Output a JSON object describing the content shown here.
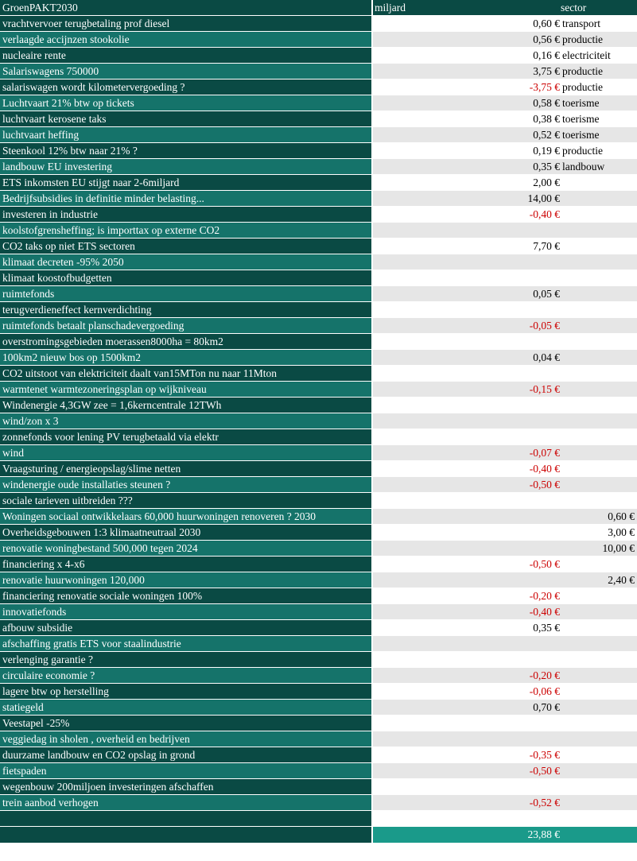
{
  "header": {
    "title": "GroenPAKT2030",
    "col_value": "miljard",
    "col_sector": "sector"
  },
  "rows": [
    {
      "label": "vrachtvervoer terugbetaling prof diesel",
      "value": "0,60 €",
      "sector": "transport",
      "neg": false
    },
    {
      "label": "verlaagde accijnzen stookolie",
      "value": "0,56 €",
      "sector": "productie",
      "neg": false
    },
    {
      "label": "nucleaire rente",
      "value": "0,16 €",
      "sector": "electriciteit",
      "neg": false
    },
    {
      "label": "Salariswagens 750000",
      "value": "3,75 €",
      "sector": "productie",
      "neg": false
    },
    {
      "label": "salariswagen wordt kilometervergoeding ?",
      "value": "-3,75 €",
      "sector": "productie",
      "neg": true
    },
    {
      "label": "Luchtvaart 21% btw op tickets",
      "value": "0,58 €",
      "sector": "toerisme",
      "neg": false
    },
    {
      "label": "luchtvaart kerosene taks",
      "value": "0,38 €",
      "sector": "toerisme",
      "neg": false
    },
    {
      "label": "luchtvaart heffing",
      "value": "0,52 €",
      "sector": "toerisme",
      "neg": false
    },
    {
      "label": "Steenkool 12% btw naar 21% ?",
      "value": "0,19 €",
      "sector": "productie",
      "neg": false
    },
    {
      "label": "landbouw EU investering",
      "value": "0,35 €",
      "sector": "landbouw",
      "neg": false
    },
    {
      "label": "ETS inkomsten EU stijgt naar 2-6miljard",
      "value": "2,00 €",
      "sector": "",
      "neg": false
    },
    {
      "label": "Bedrijfsubsidies in definitie minder belasting...",
      "value": "14,00 €",
      "sector": "",
      "neg": false
    },
    {
      "label": "investeren in industrie",
      "value": "-0,40 €",
      "sector": "",
      "neg": true
    },
    {
      "label": "koolstofgrensheffing; is importtax op externe CO2",
      "value": "",
      "sector": "",
      "neg": false
    },
    {
      "label": "CO2 taks op niet ETS sectoren",
      "value": "7,70 €",
      "sector": "",
      "neg": false
    },
    {
      "label": "klimaat decreten -95% 2050",
      "value": "",
      "sector": "",
      "neg": false
    },
    {
      "label": "klimaat koostofbudgetten",
      "value": "",
      "sector": "",
      "neg": false
    },
    {
      "label": "ruimtefonds",
      "value": "0,05 €",
      "sector": "",
      "neg": false
    },
    {
      "label": "terugverdieneffect kernverdichting",
      "value": "",
      "sector": "",
      "neg": false
    },
    {
      "label": "ruimtefonds betaalt planschadevergoeding",
      "value": "-0,05 €",
      "sector": "",
      "neg": true
    },
    {
      "label": "overstromingsgebieden moerassen8000ha = 80km2",
      "value": "",
      "sector": "",
      "neg": false
    },
    {
      "label": "100km2 nieuw bos op 1500km2",
      "value": "0,04 €",
      "sector": "",
      "neg": false
    },
    {
      "label": " CO2 uitstoot van elektriciteit daalt van15MTon nu naar  11Mton",
      "value": "",
      "sector": "",
      "neg": false
    },
    {
      "label": "warmtenet warmtezoneringsplan op wijkniveau",
      "value": "-0,15 €",
      "sector": "",
      "neg": true
    },
    {
      "label": "Windenergie 4,3GW zee = 1,6kerncentrale 12TWh",
      "value": "",
      "sector": "",
      "neg": false
    },
    {
      "label": "wind/zon x 3",
      "value": "",
      "sector": "",
      "neg": false
    },
    {
      "label": "zonnefonds voor lening PV terugbetaald via elektr",
      "value": "",
      "sector": "",
      "neg": false
    },
    {
      "label": "wind",
      "value": "-0,07 €",
      "sector": "",
      "neg": true
    },
    {
      "label": "Vraagsturing / energieopslag/slime netten",
      "value": "-0,40 €",
      "sector": "",
      "neg": true
    },
    {
      "label": "windenergie oude installaties steunen ?",
      "value": "-0,50 €",
      "sector": "",
      "neg": true
    },
    {
      "label": "sociale tarieven uitbreiden ???",
      "value": "",
      "sector": "",
      "neg": false
    },
    {
      "label": "Woningen sociaal ontwikkelaars 60,000 huurwoningen renoveren ? 2030",
      "value": "",
      "sector": "0,60 €",
      "neg": false
    },
    {
      "label": "Overheidsgebouwen 1:3 klimaatneutraal 2030",
      "value": "",
      "sector": "3,00 €",
      "neg": false
    },
    {
      "label": "renovatie woningbestand 500,000 tegen 2024",
      "value": "",
      "sector": "10,00 €",
      "neg": false
    },
    {
      "label": "financiering x 4-x6",
      "value": "-0,50 €",
      "sector": "",
      "neg": true
    },
    {
      "label": "renovatie huurwoningen 120,000",
      "value": "",
      "sector": "2,40 €",
      "neg": false
    },
    {
      "label": "financiering renovatie sociale woningen 100%",
      "value": "-0,20 €",
      "sector": "",
      "neg": true
    },
    {
      "label": "innovatiefonds",
      "value": "-0,40 €",
      "sector": "",
      "neg": true
    },
    {
      "label": "afbouw subsidie",
      "value": "0,35 €",
      "sector": "",
      "neg": false
    },
    {
      "label": "afschaffing gratis ETS voor staalindustrie",
      "value": "",
      "sector": "",
      "neg": false
    },
    {
      "label": "verlenging garantie ?",
      "value": "",
      "sector": "",
      "neg": false
    },
    {
      "label": "circulaire economie ?",
      "value": "-0,20 €",
      "sector": "",
      "neg": true
    },
    {
      "label": "lagere btw op herstelling",
      "value": "-0,06 €",
      "sector": "",
      "neg": true
    },
    {
      "label": "statiegeld",
      "value": "0,70 €",
      "sector": "",
      "neg": false
    },
    {
      "label": "Veestapel -25%",
      "value": "",
      "sector": "",
      "neg": false
    },
    {
      "label": "veggiedag in sholen , overheid en bedrijven",
      "value": "",
      "sector": "",
      "neg": false
    },
    {
      "label": "duurzame landbouw en CO2 opslag in grond",
      "value": "-0,35 €",
      "sector": "",
      "neg": true
    },
    {
      "label": "fietspaden",
      "value": "-0,50 €",
      "sector": "",
      "neg": true
    },
    {
      "label": "wegenbouw 200miljoen investeringen afschaffen",
      "value": "",
      "sector": "",
      "neg": false
    },
    {
      "label": "trein aanbod verhogen",
      "value": "-0,52 €",
      "sector": "",
      "neg": true
    }
  ],
  "total": {
    "value": "23,88 €"
  },
  "colors": {
    "dark": "#0a4a44",
    "light": "#15736a",
    "neg": "#cc0000",
    "total": "#1a9a8a"
  }
}
